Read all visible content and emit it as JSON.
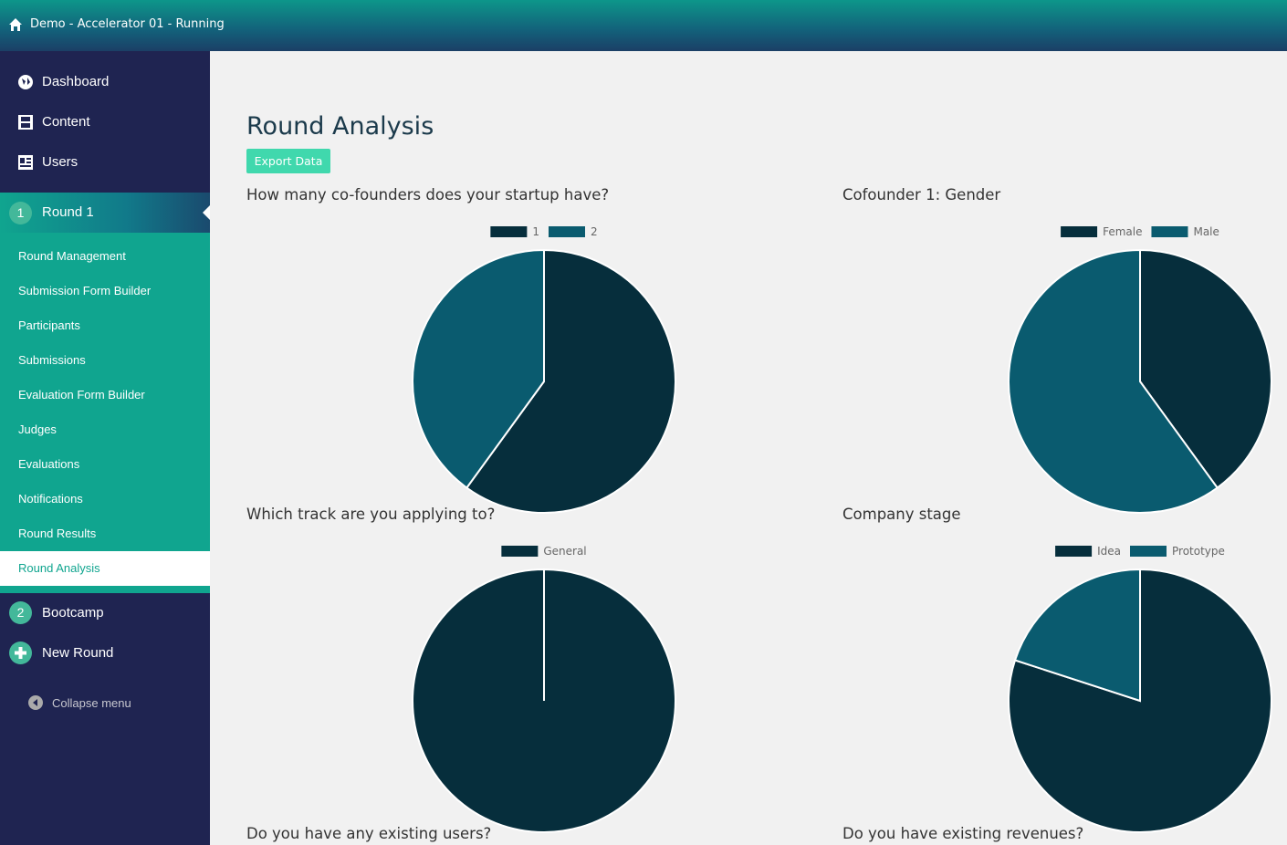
{
  "header": {
    "title": "Demo - Accelerator 01 - Running"
  },
  "sidebar": {
    "top": [
      "Dashboard",
      "Content",
      "Users"
    ],
    "current_round": {
      "number": "1",
      "label": "Round 1"
    },
    "submenu": [
      "Round Management",
      "Submission Form Builder",
      "Participants",
      "Submissions",
      "Evaluation Form Builder",
      "Judges",
      "Evaluations",
      "Notifications",
      "Round Results",
      "Round Analysis"
    ],
    "other_round": {
      "number": "2",
      "label": "Bootcamp"
    },
    "new_round": "New Round",
    "collapse": "Collapse menu"
  },
  "page": {
    "title": "Round Analysis",
    "export_button": "Export Data"
  },
  "chart_data": [
    {
      "type": "pie",
      "title": "How many co-founders does your startup have?",
      "categories": [
        "1",
        "2"
      ],
      "values": [
        60,
        40
      ],
      "colors": [
        "#062e3c",
        "#0a5b6f"
      ]
    },
    {
      "type": "pie",
      "title": "Cofounder 1: Gender",
      "categories": [
        "Female",
        "Male"
      ],
      "values": [
        40,
        60
      ],
      "colors": [
        "#062e3c",
        "#0a5b6f"
      ]
    },
    {
      "type": "pie",
      "title": "Which track are you applying to?",
      "categories": [
        "General"
      ],
      "values": [
        100
      ],
      "colors": [
        "#062e3c"
      ]
    },
    {
      "type": "pie",
      "title": "Company stage",
      "categories": [
        "Idea",
        "Prototype"
      ],
      "values": [
        80,
        20
      ],
      "colors": [
        "#062e3c",
        "#0a5b6f"
      ]
    }
  ],
  "more_questions": [
    "Do you have any existing users?",
    "Do you have existing revenues?"
  ]
}
